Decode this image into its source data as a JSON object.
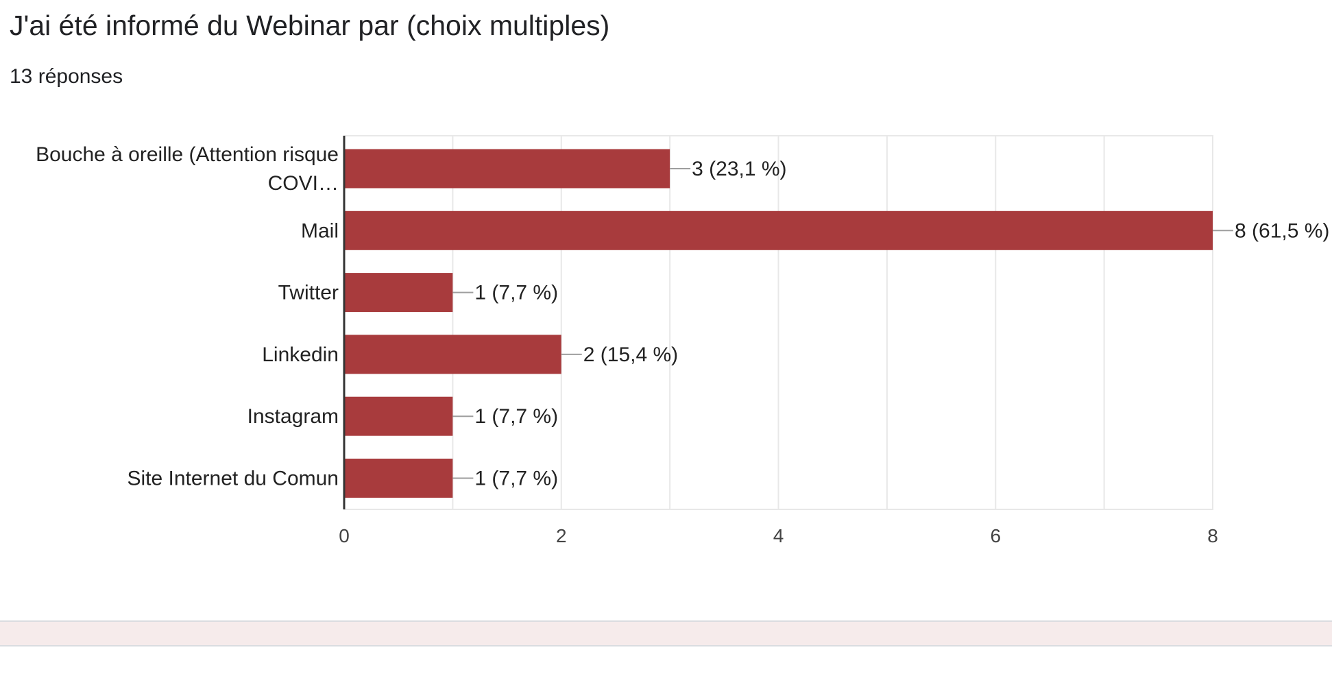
{
  "question": {
    "title": "J'ai été informé du Webinar par (choix multiples)",
    "responses": "13 réponses"
  },
  "colors": {
    "bar": "#a83b3d",
    "grid": "#e8e8e8",
    "axis": "#333333",
    "leader": "#9e9e9e",
    "footer_band": "#f6ebeb"
  },
  "chart_data": {
    "type": "bar",
    "orientation": "horizontal",
    "categories": [
      [
        "Bouche à oreille (Attention risque",
        "COVI…"
      ],
      [
        "Mail"
      ],
      [
        "Twitter"
      ],
      [
        "Linkedin"
      ],
      [
        "Instagram"
      ],
      [
        "Site Internet du Comun"
      ]
    ],
    "values": [
      3,
      8,
      1,
      2,
      1,
      1
    ],
    "value_labels": [
      "3 (23,1 %)",
      "8 (61,5 %)",
      "1 (7,7 %)",
      "2 (15,4 %)",
      "1 (7,7 %)",
      "1 (7,7 %)"
    ],
    "xlim": [
      0,
      8
    ],
    "xticks": [
      0,
      2,
      4,
      6,
      8
    ],
    "grid": true
  }
}
